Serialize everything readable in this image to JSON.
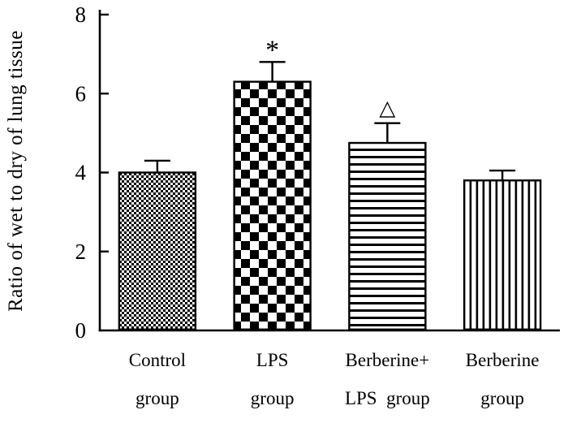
{
  "figure": {
    "background": "#ffffff",
    "ink_color": "#000000"
  },
  "chart_data": {
    "type": "bar",
    "title": "",
    "xlabel": "",
    "ylabel": "Ratio of wet to dry of lung tissue",
    "ylim": [
      0,
      8
    ],
    "yticks": [
      0,
      2,
      4,
      6,
      8
    ],
    "grid": false,
    "legend": "none",
    "categories": [
      {
        "line1": "Control",
        "line2": "group"
      },
      {
        "line1": "LPS",
        "line2": "group"
      },
      {
        "line1": "Berberine+",
        "line2": "LPS  group"
      },
      {
        "line1": "Berberine",
        "line2": "group"
      }
    ],
    "values": [
      4.0,
      6.3,
      4.75,
      3.8
    ],
    "errors": [
      0.3,
      0.5,
      0.5,
      0.25
    ],
    "annotations": [
      "",
      "*",
      "△",
      ""
    ],
    "patterns": [
      "fine-check",
      "checkerboard",
      "horizontal-lines",
      "vertical-lines"
    ],
    "bar_fill_style": "black-and-white hatch patterns",
    "series_color": "#000000"
  }
}
